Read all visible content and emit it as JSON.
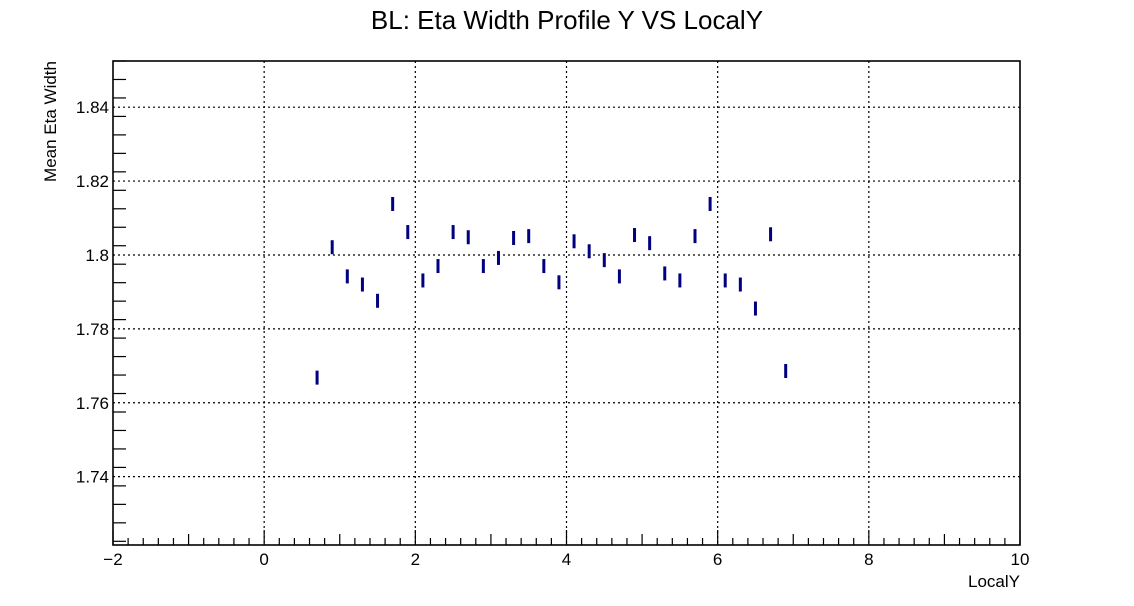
{
  "chart_data": {
    "type": "scatter",
    "title": "BL: Eta Width Profile Y VS LocalY",
    "xlabel": "LocalY",
    "ylabel": "Mean Eta Width",
    "xlim": [
      -2,
      10
    ],
    "ylim": [
      1.7215,
      1.8525
    ],
    "grid": true,
    "legend": "none",
    "color": "#000080",
    "x_ticks": [
      -2,
      0,
      2,
      4,
      6,
      8,
      10
    ],
    "x_tick_labels": [
      "−2",
      "0",
      "2",
      "4",
      "6",
      "8",
      "10"
    ],
    "y_ticks": [
      1.74,
      1.76,
      1.78,
      1.8,
      1.82,
      1.84
    ],
    "y_tick_labels": [
      "1.74",
      "1.76",
      "1.78",
      "1.8",
      "1.82",
      "1.84"
    ],
    "x_bin_half_width": 0.1,
    "points": [
      {
        "x": 0.7,
        "y": 1.7668
      },
      {
        "x": 0.9,
        "y": 1.8021
      },
      {
        "x": 1.1,
        "y": 1.7942
      },
      {
        "x": 1.3,
        "y": 1.792
      },
      {
        "x": 1.5,
        "y": 1.7876
      },
      {
        "x": 1.7,
        "y": 1.8138
      },
      {
        "x": 1.9,
        "y": 1.8062
      },
      {
        "x": 2.1,
        "y": 1.7931
      },
      {
        "x": 2.3,
        "y": 1.797
      },
      {
        "x": 2.5,
        "y": 1.8062
      },
      {
        "x": 2.7,
        "y": 1.8048
      },
      {
        "x": 2.9,
        "y": 1.797
      },
      {
        "x": 3.1,
        "y": 1.7992
      },
      {
        "x": 3.3,
        "y": 1.8046
      },
      {
        "x": 3.5,
        "y": 1.8051
      },
      {
        "x": 3.7,
        "y": 1.797
      },
      {
        "x": 3.9,
        "y": 1.7926
      },
      {
        "x": 4.1,
        "y": 1.8037
      },
      {
        "x": 4.3,
        "y": 1.801
      },
      {
        "x": 4.5,
        "y": 1.7986
      },
      {
        "x": 4.7,
        "y": 1.7942
      },
      {
        "x": 4.9,
        "y": 1.8054
      },
      {
        "x": 5.1,
        "y": 1.8032
      },
      {
        "x": 5.3,
        "y": 1.795
      },
      {
        "x": 5.5,
        "y": 1.7931
      },
      {
        "x": 5.7,
        "y": 1.8051
      },
      {
        "x": 5.9,
        "y": 1.8138
      },
      {
        "x": 6.1,
        "y": 1.7931
      },
      {
        "x": 6.3,
        "y": 1.792
      },
      {
        "x": 6.5,
        "y": 1.7855
      },
      {
        "x": 6.7,
        "y": 1.8056
      },
      {
        "x": 6.9,
        "y": 1.7686
      }
    ]
  }
}
